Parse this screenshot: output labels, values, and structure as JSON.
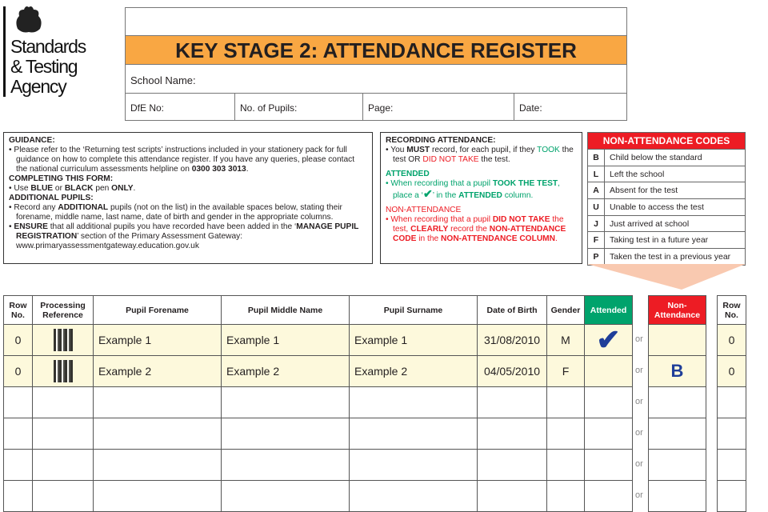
{
  "logo": {
    "text_lines": [
      "Standards",
      "& Testing",
      "Agency"
    ]
  },
  "header": {
    "title": "KEY STAGE 2: ATTENDANCE REGISTER",
    "school_name_label": "School Name:",
    "dfe_label": "DfE No:",
    "pupils_label": "No. of Pupils:",
    "page_label": "Page:",
    "date_label": "Date:"
  },
  "guidance": {
    "h1": "GUIDANCE:",
    "p1a": "Please refer to the ‘Returning test scripts’ instructions included in your stationery pack for full guidance on how to complete this attendance register. If you have any queries, please contact the national curriculum assessments helpline on ",
    "p1b": "0300 303 3013",
    "h2": "COMPLETING THIS FORM:",
    "p2a": "Use ",
    "p2b": "BLUE",
    "p2c": " or ",
    "p2d": "BLACK",
    "p2e": " pen ",
    "p2f": "ONLY",
    "p2g": ".",
    "h3": "ADDITIONAL PUPILS:",
    "p3a": "Record any ",
    "p3b": "ADDITIONAL",
    "p3c": " pupils (not on the list) in the available spaces below, stating their forename, middle name, last name, date of birth and gender in the appropriate columns.",
    "p4a": "ENSURE",
    "p4b": " that all additional pupils you have recorded have been added in the ‘",
    "p4c": "MANAGE PUPIL REGISTRATION",
    "p4d": "’ section of the Primary Assessment Gateway: www.primaryassessmentgateway.education.gov.uk"
  },
  "recording": {
    "h1": "RECORDING ATTENDANCE:",
    "p1a": "You ",
    "p1b": "MUST",
    "p1c": " record, for each pupil, if they ",
    "p1d": "TOOK",
    "p1e": " the test OR ",
    "p1f": "DID NOT TAKE",
    "p1g": " the test.",
    "h2": "ATTENDED",
    "p2a": "When recording that a pupil ",
    "p2b": "TOOK THE TEST",
    "p2c": ", place a ‘",
    "p2tick": "✔",
    "p2d": "’ in the ",
    "p2e": "ATTENDED",
    "p2f": " column.",
    "h3": "NON-ATTENDANCE",
    "p3a": "When recording that a pupil ",
    "p3b": "DID NOT TAKE",
    "p3c": " the test, ",
    "p3d": "CLEARLY",
    "p3e": " record the ",
    "p3f": "NON-ATTENDANCE CODE",
    "p3g": " in the ",
    "p3h": "NON-ATTENDANCE COLUMN",
    "p3i": "."
  },
  "codes": {
    "title": "NON-ATTENDANCE CODES",
    "items": [
      {
        "code": "B",
        "desc": "Child below the standard"
      },
      {
        "code": "L",
        "desc": "Left the school"
      },
      {
        "code": "A",
        "desc": "Absent for the test"
      },
      {
        "code": "U",
        "desc": "Unable to access the test"
      },
      {
        "code": "J",
        "desc": "Just arrived at school"
      },
      {
        "code": "F",
        "desc": "Taking test in a future year"
      },
      {
        "code": "P",
        "desc": "Taken the test in a previous year"
      }
    ]
  },
  "table": {
    "headers": {
      "row_no": "Row No.",
      "proc_ref": "Processing Reference",
      "forename": "Pupil Forename",
      "middle": "Pupil Middle Name",
      "surname": "Pupil Surname",
      "dob": "Date of Birth",
      "gender": "Gender",
      "attended": "Attended",
      "non_attendance": "Non-Attendance",
      "row_no_right": "Row No."
    },
    "or_label": "or",
    "rows": [
      {
        "row_no": "0",
        "forename": "Example 1",
        "middle": "Example 1",
        "surname": "Example 1",
        "dob": "31/08/2010",
        "gender": "M",
        "attended": "✔",
        "non_attendance": "",
        "row_no_right": "0"
      },
      {
        "row_no": "0",
        "forename": "Example 2",
        "middle": "Example 2",
        "surname": "Example 2",
        "dob": "04/05/2010",
        "gender": "F",
        "attended": "",
        "non_attendance": "B",
        "row_no_right": "0"
      }
    ]
  },
  "colors": {
    "orange": "#f9a743",
    "green": "#00a36c",
    "red": "#ed1c24",
    "pen_blue": "#1f3e99",
    "row_highlight": "#fdf9dc"
  }
}
